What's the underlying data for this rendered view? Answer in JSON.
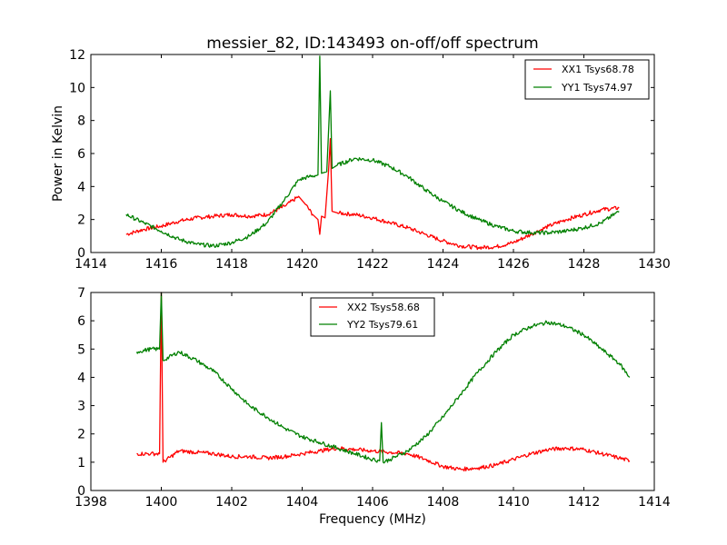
{
  "figure_title": "messier_82, ID:143493 on-off/off spectrum",
  "chart_data": [
    {
      "type": "line",
      "title": "messier_82, ID:143493 on-off/off spectrum",
      "xlabel": "",
      "ylabel": "Power in Kelvin",
      "xlim": [
        1414,
        1430
      ],
      "ylim": [
        0,
        12
      ],
      "xticks": [
        "1414",
        "1416",
        "1418",
        "1420",
        "1422",
        "1424",
        "1426",
        "1428",
        "1430"
      ],
      "yticks": [
        "0",
        "2",
        "4",
        "6",
        "8",
        "10",
        "12"
      ],
      "legend_position": "top-right",
      "series": [
        {
          "name": "XX1 Tsys68.78",
          "color": "#ff0000",
          "x": [
            1415.0,
            1415.5,
            1416.0,
            1416.5,
            1417.0,
            1417.5,
            1418.0,
            1418.5,
            1419.0,
            1419.5,
            1419.9,
            1420.1,
            1420.3,
            1420.45,
            1420.5,
            1420.55,
            1420.65,
            1420.75,
            1420.8,
            1420.85,
            1421.0,
            1421.5,
            1422.0,
            1422.5,
            1423.0,
            1423.5,
            1424.0,
            1424.5,
            1425.0,
            1425.5,
            1426.0,
            1426.5,
            1427.0,
            1427.5,
            1428.0,
            1428.5,
            1429.0
          ],
          "y": [
            1.1,
            1.4,
            1.6,
            1.9,
            2.1,
            2.2,
            2.3,
            2.2,
            2.3,
            2.8,
            3.4,
            2.9,
            2.3,
            2.0,
            1.1,
            2.2,
            2.1,
            5.0,
            6.9,
            2.5,
            2.4,
            2.3,
            2.1,
            1.8,
            1.5,
            1.1,
            0.7,
            0.4,
            0.3,
            0.35,
            0.6,
            1.1,
            1.6,
            2.0,
            2.3,
            2.6,
            2.7
          ]
        },
        {
          "name": "YY1 Tsys74.97",
          "color": "#008000",
          "x": [
            1415.0,
            1415.5,
            1416.0,
            1416.5,
            1417.0,
            1417.5,
            1418.0,
            1418.5,
            1419.0,
            1419.5,
            1419.9,
            1420.2,
            1420.45,
            1420.5,
            1420.55,
            1420.7,
            1420.8,
            1420.85,
            1421.0,
            1421.5,
            1422.0,
            1422.5,
            1423.0,
            1423.5,
            1424.0,
            1424.5,
            1425.0,
            1425.5,
            1426.0,
            1426.5,
            1427.0,
            1427.5,
            1428.0,
            1428.5,
            1429.0
          ],
          "y": [
            2.3,
            1.8,
            1.3,
            0.8,
            0.5,
            0.4,
            0.6,
            1.0,
            1.8,
            3.2,
            4.4,
            4.6,
            4.7,
            11.9,
            4.8,
            4.9,
            9.8,
            5.1,
            5.3,
            5.7,
            5.6,
            5.2,
            4.6,
            3.8,
            3.1,
            2.5,
            2.0,
            1.6,
            1.3,
            1.2,
            1.2,
            1.3,
            1.5,
            1.8,
            2.5
          ]
        }
      ]
    },
    {
      "type": "line",
      "title": "",
      "xlabel": "Frequency (MHz)",
      "ylabel": "",
      "xlim": [
        1398,
        1414
      ],
      "ylim": [
        0,
        7
      ],
      "xticks": [
        "1398",
        "1400",
        "1402",
        "1404",
        "1406",
        "1408",
        "1410",
        "1412",
        "1414"
      ],
      "yticks": [
        "0",
        "1",
        "2",
        "3",
        "4",
        "5",
        "6",
        "7"
      ],
      "legend_position": "top-center",
      "series": [
        {
          "name": "XX2 Tsys58.68",
          "color": "#ff0000",
          "x": [
            1399.3,
            1399.7,
            1399.95,
            1400.0,
            1400.05,
            1400.5,
            1401.0,
            1401.5,
            1402.0,
            1402.5,
            1403.0,
            1403.5,
            1404.0,
            1404.5,
            1405.0,
            1405.5,
            1406.0,
            1406.5,
            1407.0,
            1407.5,
            1408.0,
            1408.5,
            1409.0,
            1409.5,
            1410.0,
            1410.5,
            1411.0,
            1411.5,
            1412.0,
            1412.5,
            1413.0,
            1413.3
          ],
          "y": [
            1.3,
            1.3,
            1.3,
            7.0,
            1.0,
            1.4,
            1.35,
            1.3,
            1.2,
            1.2,
            1.15,
            1.2,
            1.3,
            1.4,
            1.5,
            1.45,
            1.4,
            1.35,
            1.3,
            1.1,
            0.85,
            0.75,
            0.8,
            0.9,
            1.1,
            1.3,
            1.45,
            1.5,
            1.45,
            1.3,
            1.15,
            1.05
          ]
        },
        {
          "name": "YY2 Tsys79.61",
          "color": "#008000",
          "x": [
            1399.3,
            1399.7,
            1399.95,
            1400.0,
            1400.05,
            1400.5,
            1401.0,
            1401.5,
            1402.0,
            1402.5,
            1403.0,
            1403.5,
            1404.0,
            1404.5,
            1405.0,
            1405.5,
            1406.0,
            1406.2,
            1406.25,
            1406.3,
            1406.5,
            1407.0,
            1407.5,
            1408.0,
            1408.5,
            1409.0,
            1409.5,
            1410.0,
            1410.5,
            1411.0,
            1411.5,
            1412.0,
            1412.5,
            1413.0,
            1413.3
          ],
          "y": [
            4.9,
            5.0,
            5.0,
            7.0,
            4.6,
            4.9,
            4.6,
            4.2,
            3.6,
            3.0,
            2.6,
            2.2,
            1.9,
            1.7,
            1.5,
            1.3,
            1.1,
            1.05,
            2.4,
            1.0,
            1.1,
            1.4,
            1.9,
            2.6,
            3.4,
            4.2,
            4.9,
            5.5,
            5.8,
            5.95,
            5.8,
            5.5,
            5.0,
            4.5,
            4.0
          ]
        }
      ]
    }
  ]
}
